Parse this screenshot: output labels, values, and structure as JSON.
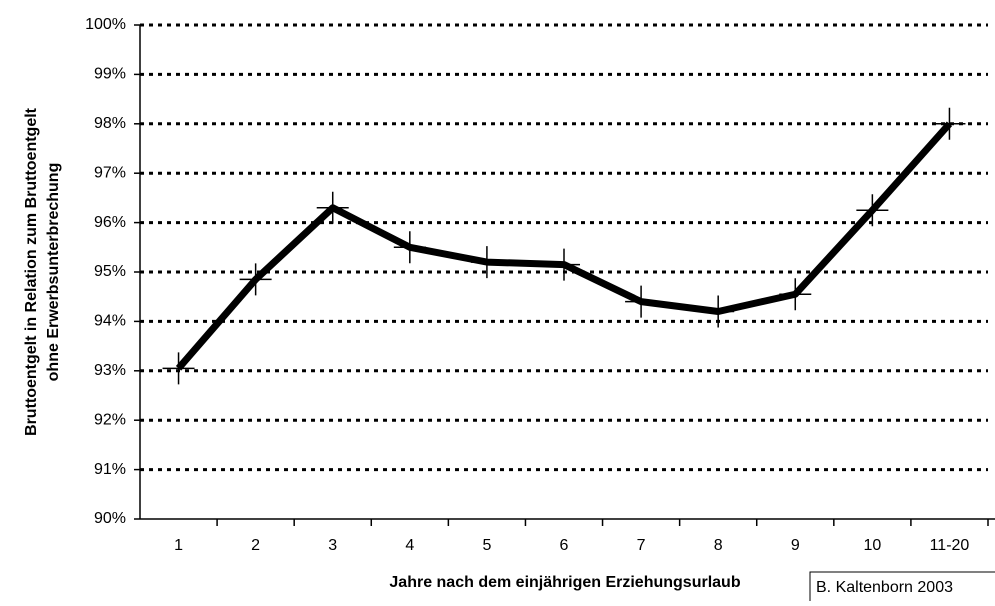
{
  "chart_data": {
    "type": "line",
    "y_label": [
      "Bruttoentgelt in Relation zum Bruttoentgelt",
      "ohne Erwerbsunterbrechung"
    ],
    "x_label": "Jahre nach dem einjährigen Erziehungsurlaub",
    "categories": [
      "1",
      "2",
      "3",
      "4",
      "5",
      "6",
      "7",
      "8",
      "9",
      "10",
      "11-20"
    ],
    "values": [
      93.05,
      94.85,
      96.3,
      95.5,
      95.2,
      95.15,
      94.4,
      94.2,
      94.55,
      96.25,
      98.0
    ],
    "color": "#000000",
    "ylim": [
      90,
      100
    ],
    "yticks": [
      {
        "value": 90,
        "label": "90%"
      },
      {
        "value": 91,
        "label": "91%"
      },
      {
        "value": 92,
        "label": "92%"
      },
      {
        "value": 93,
        "label": "93%"
      },
      {
        "value": 94,
        "label": "94%"
      },
      {
        "value": 95,
        "label": "95%"
      },
      {
        "value": 96,
        "label": "96%"
      },
      {
        "value": 97,
        "label": "97%"
      },
      {
        "value": 98,
        "label": "98%"
      },
      {
        "value": 99,
        "label": "99%"
      },
      {
        "value": 100,
        "label": "100%"
      }
    ],
    "grid": true,
    "source": "B. Kaltenborn 2003"
  }
}
